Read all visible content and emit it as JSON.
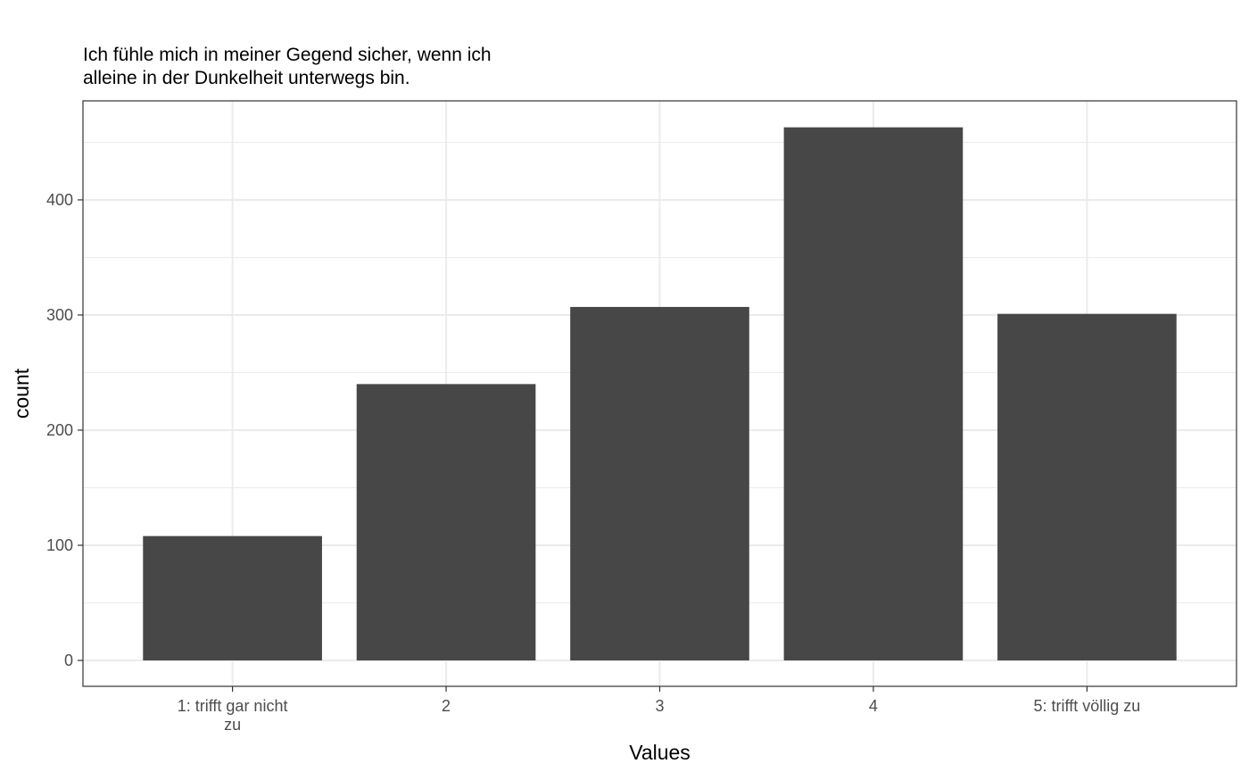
{
  "chart_data": {
    "type": "bar",
    "title": [
      "Ich fühle mich in meiner Gegend sicher, wenn ich",
      "alleine in der Dunkelheit unterwegs bin."
    ],
    "categories": [
      [
        "1: trifft gar nicht",
        "zu"
      ],
      [
        "2"
      ],
      [
        "3"
      ],
      [
        "4"
      ],
      [
        "5: trifft völlig zu"
      ]
    ],
    "values": [
      108,
      240,
      307,
      463,
      301
    ],
    "xlabel": "Values",
    "ylabel": "count",
    "ylim": [
      -22.5,
      486
    ],
    "yticks": [
      0,
      100,
      200,
      300,
      400
    ],
    "ytick_labels": [
      "0",
      "100",
      "200",
      "300",
      "400"
    ],
    "grid": true,
    "bar_color": "#474747",
    "legend": "none"
  }
}
